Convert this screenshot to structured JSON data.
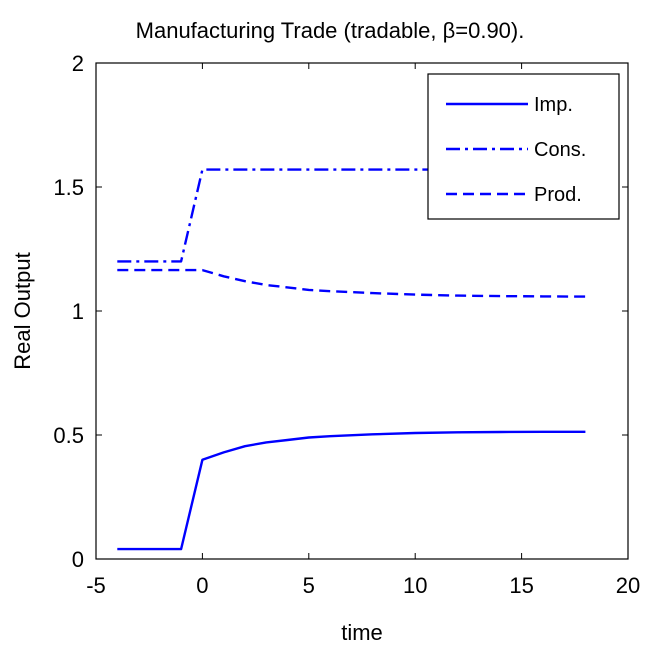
{
  "chart_data": {
    "type": "line",
    "title": "Manufacturing Trade (tradable, β=0.90).",
    "xlabel": "time",
    "ylabel": "Real Output",
    "xlim": [
      -5,
      20
    ],
    "ylim": [
      0,
      2
    ],
    "xticks": [
      "-5",
      "0",
      "5",
      "10",
      "15",
      "20"
    ],
    "yticks": [
      "0",
      "0.5",
      "1",
      "1.5",
      "2"
    ],
    "grid": false,
    "legend_position": "top-right",
    "line_color": "#0000ff",
    "series": [
      {
        "name": "Imp.",
        "style": "solid",
        "x": [
          -4,
          -1,
          0,
          1,
          2,
          3,
          4,
          5,
          6,
          8,
          10,
          12,
          14,
          16,
          18
        ],
        "y": [
          0.04,
          0.04,
          0.4,
          0.43,
          0.455,
          0.47,
          0.48,
          0.49,
          0.495,
          0.503,
          0.508,
          0.511,
          0.512,
          0.513,
          0.513
        ]
      },
      {
        "name": "Cons.",
        "style": "dashdot",
        "x": [
          -4,
          -1,
          0,
          18
        ],
        "y": [
          1.2,
          1.2,
          1.57,
          1.57
        ]
      },
      {
        "name": "Prod.",
        "style": "dashed",
        "x": [
          -4,
          -1,
          0,
          1,
          2,
          3,
          4,
          5,
          6,
          8,
          10,
          12,
          14,
          16,
          18
        ],
        "y": [
          1.165,
          1.165,
          1.165,
          1.14,
          1.12,
          1.105,
          1.095,
          1.085,
          1.08,
          1.072,
          1.066,
          1.062,
          1.06,
          1.059,
          1.058
        ]
      }
    ]
  }
}
